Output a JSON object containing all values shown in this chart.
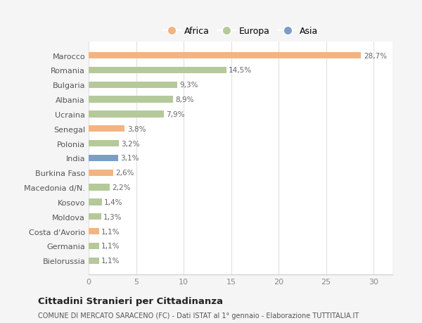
{
  "countries": [
    "Bielorussia",
    "Germania",
    "Costa d'Avorio",
    "Moldova",
    "Kosovo",
    "Macedonia d/N.",
    "Burkina Faso",
    "India",
    "Polonia",
    "Senegal",
    "Ucraina",
    "Albania",
    "Bulgaria",
    "Romania",
    "Marocco"
  ],
  "values": [
    1.1,
    1.1,
    1.1,
    1.3,
    1.4,
    2.2,
    2.6,
    3.1,
    3.2,
    3.8,
    7.9,
    8.9,
    9.3,
    14.5,
    28.7
  ],
  "labels": [
    "1,1%",
    "1,1%",
    "1,1%",
    "1,3%",
    "1,4%",
    "2,2%",
    "2,6%",
    "3,1%",
    "3,2%",
    "3,8%",
    "7,9%",
    "8,9%",
    "9,3%",
    "14,5%",
    "28,7%"
  ],
  "continent": [
    "Europa",
    "Europa",
    "Africa",
    "Europa",
    "Europa",
    "Europa",
    "Africa",
    "Asia",
    "Europa",
    "Africa",
    "Europa",
    "Europa",
    "Europa",
    "Europa",
    "Africa"
  ],
  "colors": {
    "Africa": "#f2b482",
    "Europa": "#b5c99a",
    "Asia": "#7b9ec9"
  },
  "legend_labels": [
    "Africa",
    "Europa",
    "Asia"
  ],
  "legend_colors": [
    "#f2b482",
    "#b5c99a",
    "#7b9ec9"
  ],
  "xlim": [
    0,
    32
  ],
  "xticks": [
    0,
    5,
    10,
    15,
    20,
    25,
    30
  ],
  "title": "Cittadini Stranieri per Cittadinanza",
  "subtitle": "COMUNE DI MERCATO SARACENO (FC) - Dati ISTAT al 1° gennaio - Elaborazione TUTTITALIA.IT",
  "bg_color": "#f5f5f5",
  "plot_bg_color": "#ffffff"
}
